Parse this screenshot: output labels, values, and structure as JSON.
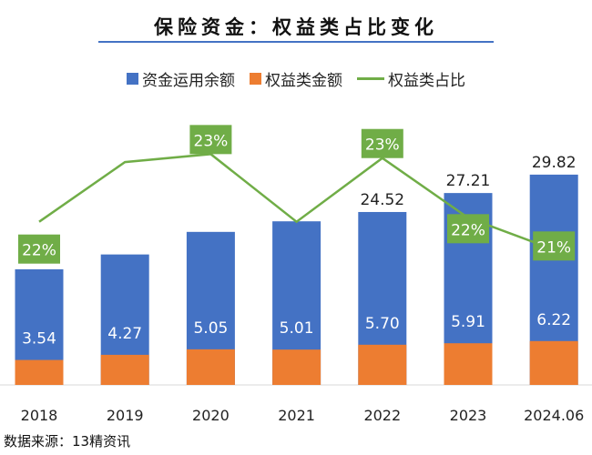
{
  "chart_data": {
    "type": "bar",
    "title": "保险资金：权益类占比变化",
    "categories": [
      "2018",
      "2019",
      "2020",
      "2021",
      "2022",
      "2023",
      "2024.06"
    ],
    "series": [
      {
        "name": "资金运用余额",
        "type": "bar",
        "color": "#4472c4",
        "values": [
          16.4,
          18.5,
          21.7,
          23.2,
          24.52,
          27.21,
          29.82
        ],
        "labels": [
          "",
          "",
          "",
          "",
          "24.52",
          "27.21",
          "29.82"
        ]
      },
      {
        "name": "权益类金额",
        "type": "bar",
        "color": "#ed7d31",
        "values": [
          3.54,
          4.27,
          5.05,
          5.01,
          5.7,
          5.91,
          6.22
        ],
        "labels": [
          "3.54",
          "4.27",
          "5.05",
          "5.01",
          "5.70",
          "5.91",
          "6.22"
        ]
      },
      {
        "name": "权益类占比",
        "type": "line",
        "color": "#70ad47",
        "values": [
          21.6,
          23.1,
          23.3,
          21.6,
          23.2,
          21.7,
          20.9
        ],
        "labels": [
          "22%",
          "",
          "23%",
          "",
          "23%",
          "22%",
          "21%"
        ]
      }
    ],
    "ylim": [
      0,
      32
    ],
    "y2lim": [
      17.5,
      25
    ],
    "grid": false,
    "legend": "top"
  },
  "source": "数据来源：13精资讯"
}
